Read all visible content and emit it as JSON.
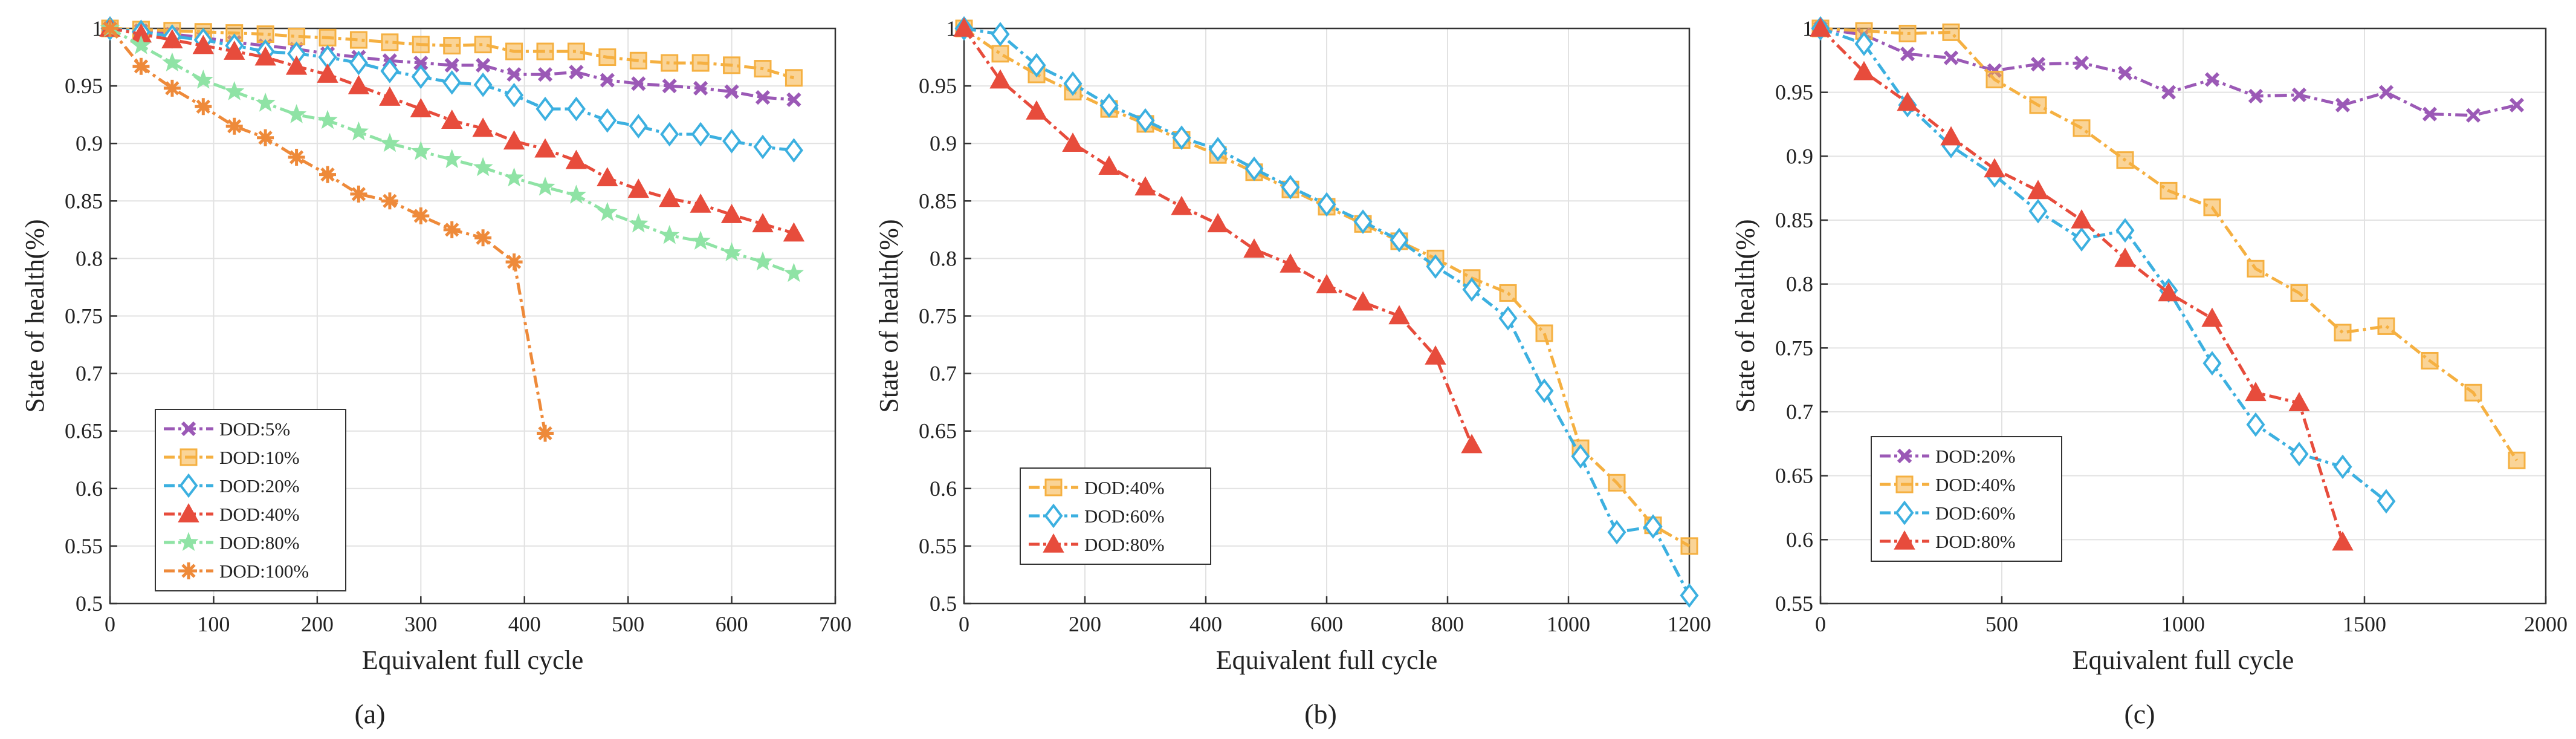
{
  "colors": {
    "purple": "#9b59b6",
    "yellow": "#f5b041",
    "blue": "#3cb0e0",
    "red": "#e74c3c",
    "green": "#8fe3a5",
    "orange": "#ee8a3a",
    "axis": "#333333",
    "grid": "#e2e2e2"
  },
  "chart_data": [
    {
      "type": "line",
      "panel_label": "(a)",
      "xlabel": "Equivalent full cycle",
      "ylabel": "State of health(%)",
      "xlim": [
        0,
        700
      ],
      "ylim": [
        0.5,
        1
      ],
      "xticks": [
        0,
        100,
        200,
        300,
        400,
        500,
        600,
        700
      ],
      "yticks": [
        0.5,
        0.55,
        0.6,
        0.65,
        0.7,
        0.75,
        0.8,
        0.85,
        0.9,
        0.95,
        1
      ],
      "ytick_labels": [
        "0.5",
        "0.55",
        "0.6",
        "0.65",
        "0.7",
        "0.75",
        "0.8",
        "0.85",
        "0.9",
        "0.95",
        "1"
      ],
      "grid": true,
      "legend_position": "lower-left",
      "series": [
        {
          "name": "DOD:5%",
          "color": "purple",
          "marker": "x",
          "x": [
            0,
            30,
            60,
            90,
            120,
            150,
            180,
            210,
            240,
            270,
            300,
            330,
            360,
            390,
            420,
            450,
            480,
            510,
            540,
            570,
            600,
            630,
            660
          ],
          "y": [
            1,
            0.998,
            0.995,
            0.992,
            0.988,
            0.985,
            0.982,
            0.978,
            0.975,
            0.972,
            0.97,
            0.968,
            0.968,
            0.96,
            0.96,
            0.962,
            0.955,
            0.952,
            0.95,
            0.948,
            0.945,
            0.94,
            0.938
          ]
        },
        {
          "name": "DOD:10%",
          "color": "yellow",
          "marker": "square",
          "x": [
            0,
            30,
            60,
            90,
            120,
            150,
            180,
            210,
            240,
            270,
            300,
            330,
            360,
            390,
            420,
            450,
            480,
            510,
            540,
            570,
            600,
            630,
            660
          ],
          "y": [
            1,
            0.999,
            0.998,
            0.997,
            0.996,
            0.995,
            0.993,
            0.992,
            0.99,
            0.988,
            0.986,
            0.985,
            0.986,
            0.98,
            0.98,
            0.98,
            0.975,
            0.972,
            0.97,
            0.97,
            0.968,
            0.965,
            0.957
          ]
        },
        {
          "name": "DOD:20%",
          "color": "blue",
          "marker": "diamond",
          "x": [
            0,
            30,
            60,
            90,
            120,
            150,
            180,
            210,
            240,
            270,
            300,
            330,
            360,
            390,
            420,
            450,
            480,
            510,
            540,
            570,
            600,
            630,
            660
          ],
          "y": [
            1,
            0.997,
            0.993,
            0.99,
            0.985,
            0.98,
            0.978,
            0.975,
            0.97,
            0.963,
            0.958,
            0.953,
            0.951,
            0.942,
            0.93,
            0.93,
            0.92,
            0.915,
            0.908,
            0.908,
            0.902,
            0.897,
            0.894
          ]
        },
        {
          "name": "DOD:40%",
          "color": "red",
          "marker": "triangle",
          "x": [
            0,
            30,
            60,
            90,
            120,
            150,
            180,
            210,
            240,
            270,
            300,
            330,
            360,
            390,
            420,
            450,
            480,
            510,
            540,
            570,
            600,
            630,
            660
          ],
          "y": [
            1,
            0.995,
            0.99,
            0.985,
            0.98,
            0.975,
            0.967,
            0.96,
            0.95,
            0.94,
            0.93,
            0.92,
            0.913,
            0.902,
            0.895,
            0.885,
            0.87,
            0.86,
            0.852,
            0.847,
            0.838,
            0.83,
            0.822
          ]
        },
        {
          "name": "DOD:80%",
          "color": "green",
          "marker": "star",
          "x": [
            0,
            30,
            60,
            90,
            120,
            150,
            180,
            210,
            240,
            270,
            300,
            330,
            360,
            390,
            420,
            450,
            480,
            510,
            540,
            570,
            600,
            630,
            660
          ],
          "y": [
            1,
            0.985,
            0.97,
            0.955,
            0.945,
            0.935,
            0.925,
            0.92,
            0.91,
            0.9,
            0.893,
            0.886,
            0.879,
            0.87,
            0.862,
            0.855,
            0.84,
            0.83,
            0.82,
            0.815,
            0.805,
            0.797,
            0.787
          ]
        },
        {
          "name": "DOD:100%",
          "color": "orange",
          "marker": "asterisk",
          "x": [
            0,
            30,
            60,
            90,
            120,
            150,
            180,
            210,
            240,
            270,
            300,
            330,
            360,
            390,
            420
          ],
          "y": [
            1,
            0.967,
            0.948,
            0.932,
            0.915,
            0.905,
            0.888,
            0.873,
            0.856,
            0.85,
            0.837,
            0.825,
            0.818,
            0.797,
            0.648
          ]
        }
      ]
    },
    {
      "type": "line",
      "panel_label": "(b)",
      "xlabel": "Equivalent full cycle",
      "ylabel": "State of health(%)",
      "xlim": [
        0,
        1200
      ],
      "ylim": [
        0.5,
        1
      ],
      "xticks": [
        0,
        200,
        400,
        600,
        800,
        1000,
        1200
      ],
      "yticks": [
        0.5,
        0.55,
        0.6,
        0.65,
        0.7,
        0.75,
        0.8,
        0.85,
        0.9,
        0.95,
        1
      ],
      "ytick_labels": [
        "0.5",
        "0.55",
        "0.6",
        "0.65",
        "0.7",
        "0.75",
        "0.8",
        "0.85",
        "0.9",
        "0.95",
        "1"
      ],
      "grid": true,
      "legend_position": "lower-left",
      "series": [
        {
          "name": "DOD:40%",
          "color": "yellow",
          "marker": "square",
          "x": [
            0,
            60,
            120,
            180,
            240,
            300,
            360,
            420,
            480,
            540,
            600,
            660,
            720,
            780,
            840,
            900,
            960,
            1020,
            1080,
            1140,
            1200
          ],
          "y": [
            1,
            0.978,
            0.96,
            0.945,
            0.93,
            0.917,
            0.903,
            0.89,
            0.875,
            0.86,
            0.845,
            0.83,
            0.815,
            0.8,
            0.783,
            0.77,
            0.735,
            0.635,
            0.605,
            0.568,
            0.55
          ]
        },
        {
          "name": "DOD:60%",
          "color": "blue",
          "marker": "diamond",
          "x": [
            0,
            60,
            120,
            180,
            240,
            300,
            360,
            420,
            480,
            540,
            600,
            660,
            720,
            780,
            840,
            900,
            960,
            1020,
            1080,
            1140,
            1200
          ],
          "y": [
            1,
            0.995,
            0.968,
            0.952,
            0.933,
            0.92,
            0.905,
            0.895,
            0.878,
            0.862,
            0.847,
            0.832,
            0.816,
            0.793,
            0.773,
            0.748,
            0.685,
            0.628,
            0.562,
            0.567,
            0.507
          ]
        },
        {
          "name": "DOD:80%",
          "color": "red",
          "marker": "triangle",
          "x": [
            0,
            60,
            120,
            180,
            240,
            300,
            360,
            420,
            480,
            540,
            600,
            660,
            720,
            780,
            840
          ],
          "y": [
            1,
            0.955,
            0.928,
            0.9,
            0.88,
            0.862,
            0.845,
            0.83,
            0.808,
            0.795,
            0.777,
            0.762,
            0.75,
            0.715,
            0.638
          ]
        }
      ]
    },
    {
      "type": "line",
      "panel_label": "(c)",
      "xlabel": "Equivalent full cycle",
      "ylabel": "State of health(%)",
      "xlim": [
        0,
        2000
      ],
      "ylim": [
        0.55,
        1
      ],
      "xticks": [
        0,
        500,
        1000,
        1500,
        2000
      ],
      "yticks": [
        0.55,
        0.6,
        0.65,
        0.7,
        0.75,
        0.8,
        0.85,
        0.9,
        0.95,
        1
      ],
      "ytick_labels": [
        "0.55",
        "0.6",
        "0.65",
        "0.7",
        "0.75",
        "0.8",
        "0.85",
        "0.9",
        "0.95",
        "1"
      ],
      "grid": true,
      "legend_position": "lower-left",
      "series": [
        {
          "name": "DOD:20%",
          "color": "purple",
          "marker": "x",
          "x": [
            0,
            120,
            240,
            360,
            480,
            600,
            720,
            840,
            960,
            1080,
            1200,
            1320,
            1440,
            1560,
            1680,
            1800,
            1920
          ],
          "y": [
            1,
            0.995,
            0.98,
            0.977,
            0.967,
            0.972,
            0.973,
            0.965,
            0.95,
            0.96,
            0.947,
            0.948,
            0.94,
            0.95,
            0.933,
            0.932,
            0.94
          ]
        },
        {
          "name": "DOD:40%",
          "color": "yellow",
          "marker": "square",
          "x": [
            0,
            120,
            240,
            360,
            480,
            600,
            720,
            840,
            960,
            1080,
            1200,
            1320,
            1440,
            1560,
            1680,
            1800,
            1920
          ],
          "y": [
            1,
            0.998,
            0.996,
            0.997,
            0.96,
            0.94,
            0.922,
            0.897,
            0.873,
            0.86,
            0.812,
            0.793,
            0.762,
            0.767,
            0.74,
            0.715,
            0.662
          ]
        },
        {
          "name": "DOD:60%",
          "color": "blue",
          "marker": "diamond",
          "x": [
            0,
            120,
            240,
            360,
            480,
            600,
            720,
            840,
            960,
            1080,
            1200,
            1320,
            1440,
            1560
          ],
          "y": [
            1,
            0.988,
            0.94,
            0.908,
            0.885,
            0.857,
            0.835,
            0.842,
            0.795,
            0.738,
            0.69,
            0.667,
            0.657,
            0.63
          ]
        },
        {
          "name": "DOD:80%",
          "color": "red",
          "marker": "triangle",
          "x": [
            0,
            120,
            240,
            360,
            480,
            600,
            720,
            840,
            960,
            1080,
            1200,
            1320,
            1440
          ],
          "y": [
            1,
            0.966,
            0.942,
            0.915,
            0.89,
            0.873,
            0.85,
            0.82,
            0.793,
            0.773,
            0.715,
            0.707,
            0.598
          ]
        }
      ]
    }
  ]
}
